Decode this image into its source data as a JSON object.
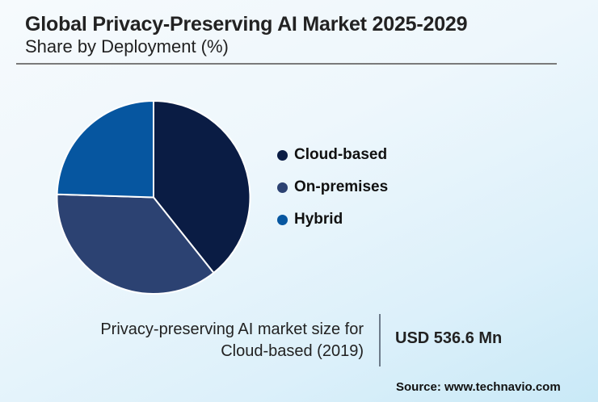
{
  "header": {
    "title": "Global Privacy-Preserving AI Market 2025-2029",
    "subtitle": "Share by Deployment (%)"
  },
  "chart_data": {
    "type": "pie",
    "title": "Global Privacy-Preserving AI Market 2025-2029",
    "subtitle": "Share by Deployment (%)",
    "categories": [
      "Cloud-based",
      "On-premises",
      "Hybrid"
    ],
    "values": [
      39.3,
      36.2,
      24.5
    ],
    "colors": [
      "#0a1c44",
      "#2c4272",
      "#0656a0"
    ],
    "start_angle": "12 o'clock",
    "direction": "clockwise",
    "legend_position": "right"
  },
  "legend": [
    {
      "label": "Cloud-based",
      "color": "#0a1c44"
    },
    {
      "label": "On-premises",
      "color": "#2c4272"
    },
    {
      "label": "Hybrid",
      "color": "#0656a0"
    }
  ],
  "info": {
    "line1": "Privacy-preserving AI market size for",
    "line2": "Cloud-based (2019)",
    "value": "USD 536.6 Mn"
  },
  "source": "Source: www.technavio.com"
}
